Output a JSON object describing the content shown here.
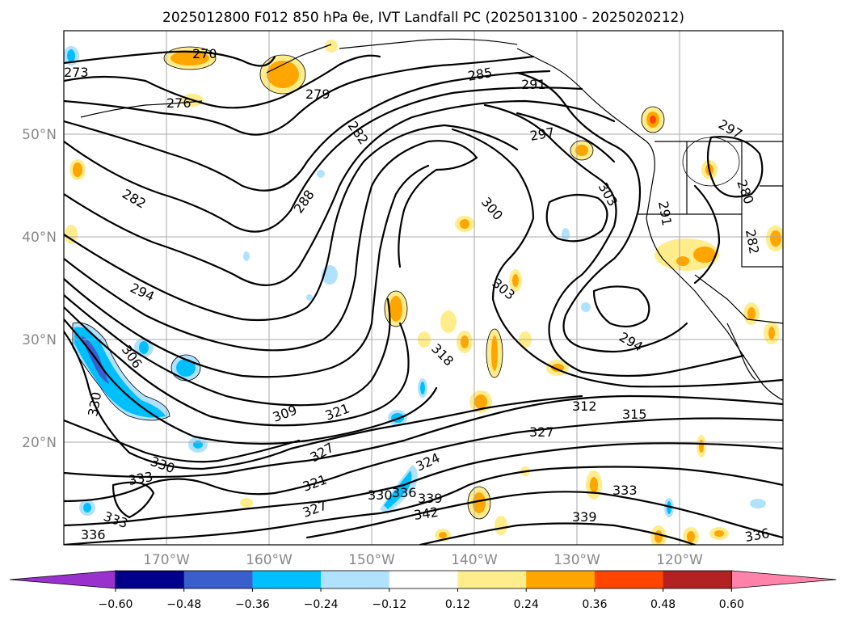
{
  "title": "2025012800 F012 850 hPa θe, IVT Landfall PC (2025013100 - 2025020212)",
  "map": {
    "lat_labels": [
      "50°N",
      "40°N",
      "30°N",
      "20°N"
    ],
    "lon_labels": [
      "170°W",
      "160°W",
      "150°W",
      "140°W",
      "130°W",
      "120°W"
    ],
    "extent": {
      "lon_min": -180,
      "lon_max": -110,
      "lat_min": 10,
      "lat_max": 60
    },
    "contour_field": "850 hPa theta-e",
    "contour_labels": [
      "270",
      "273",
      "276",
      "279",
      "282",
      "282",
      "285",
      "288",
      "291",
      "291",
      "294",
      "294",
      "297",
      "297",
      "300",
      "303",
      "303",
      "306",
      "309",
      "312",
      "315",
      "318",
      "321",
      "321",
      "324",
      "327",
      "327",
      "327",
      "330",
      "330",
      "330",
      "333",
      "333",
      "333",
      "336",
      "336",
      "336",
      "339",
      "339",
      "342",
      "280",
      "282"
    ],
    "shading_field": "IVT Landfall PC"
  },
  "colorbar": {
    "ticks": [
      "−0.60",
      "−0.48",
      "−0.36",
      "−0.24",
      "−0.12",
      "0.12",
      "0.24",
      "0.36",
      "0.48",
      "0.60"
    ],
    "colors": [
      "#9932cc",
      "#00008b",
      "#3a5fcd",
      "#00bfff",
      "#b0e2ff",
      "#ffffff",
      "#ffec8b",
      "#ffa500",
      "#ff4500",
      "#b22222",
      "#ff82ab"
    ],
    "extend": "both"
  }
}
